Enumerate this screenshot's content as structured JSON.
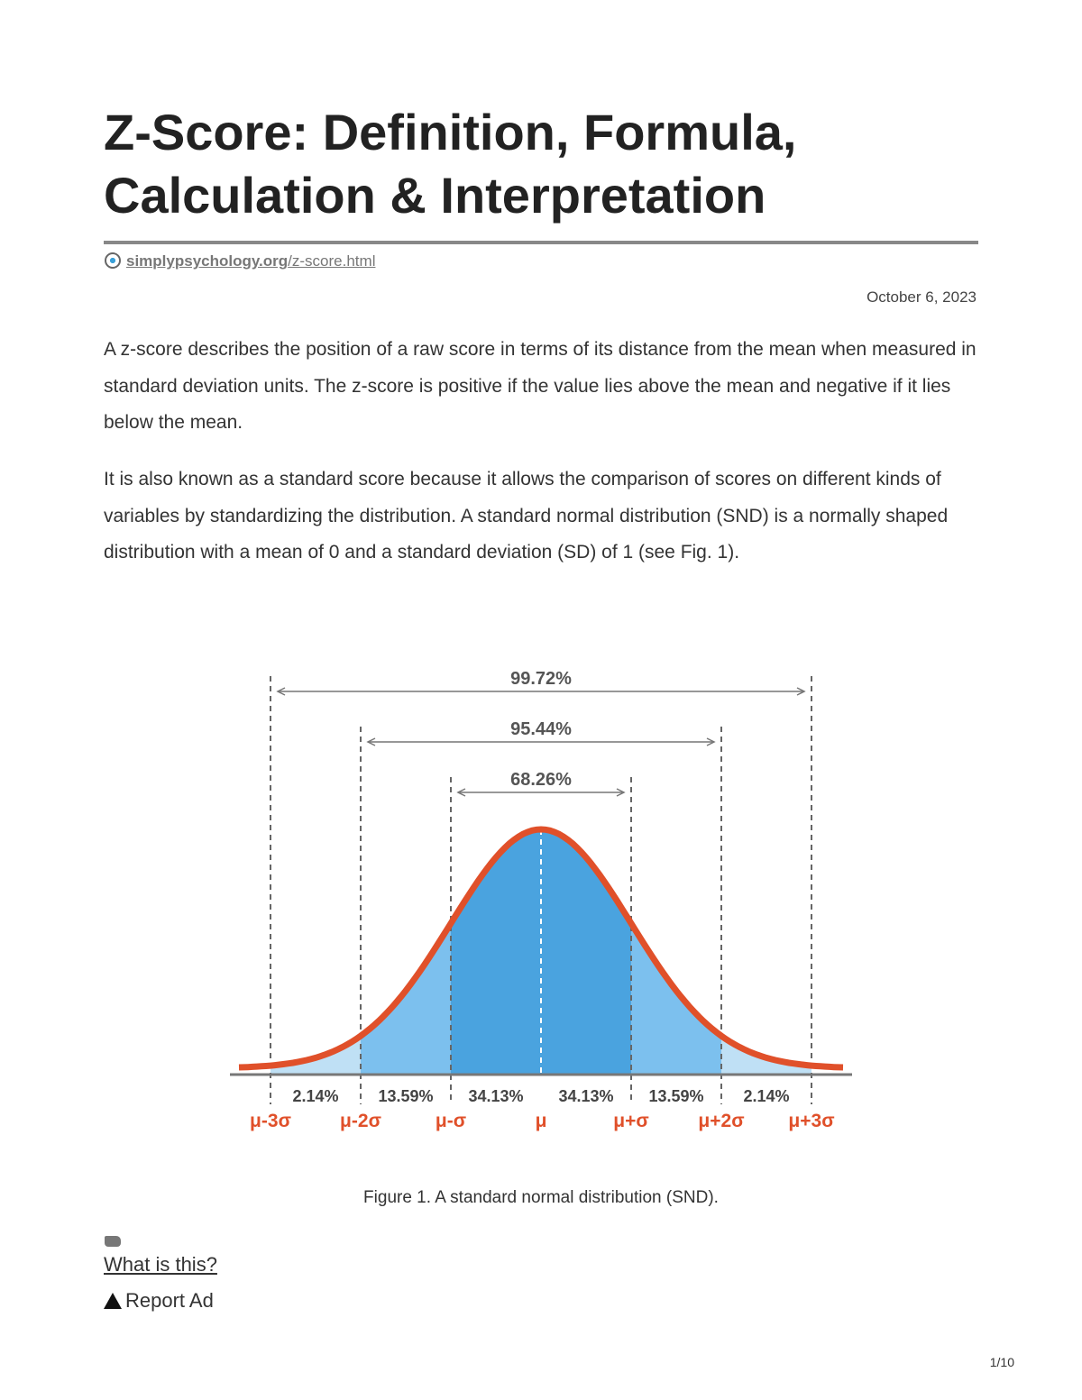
{
  "title": "Z-Score: Definition, Formula, Calculation & Interpretation",
  "source": {
    "domain": "simplypsychology.org",
    "path": "/z-score.html",
    "icon": "globe-icon"
  },
  "date": "October 6, 2023",
  "paragraphs": [
    "A z-score describes the position of a raw score in terms of its distance from the mean when measured in standard deviation units. The z-score is positive if the value lies above the mean and negative if it lies below the mean.",
    "It is also known as a standard score because it allows the comparison of scores on different kinds of variables by standardizing the distribution. A standard normal distribution (SND) is a normally shaped distribution with a mean of 0 and a standard deviation (SD) of 1 (see Fig. 1)."
  ],
  "figure": {
    "ranges": [
      "99.72%",
      "95.44%",
      "68.26%"
    ],
    "segments": [
      "2.14%",
      "13.59%",
      "34.13%",
      "34.13%",
      "13.59%",
      "2.14%"
    ],
    "sigma_labels": [
      "μ-3σ",
      "μ-2σ",
      "μ-σ",
      "μ",
      "μ+σ",
      "μ+2σ",
      "μ+3σ"
    ],
    "colors": {
      "curve": "#e0502a",
      "center": "#4aa3df",
      "middle": "#7cc0ee",
      "tail": "#bfe0f5",
      "label": "#e0502a"
    },
    "caption": "Figure 1. A standard normal distribution (SND)."
  },
  "ad": {
    "icon": "ad-icon",
    "what_label": "What is this?",
    "report_label": "Report Ad",
    "report_icon": "warning-icon"
  },
  "page_number": "1/10"
}
